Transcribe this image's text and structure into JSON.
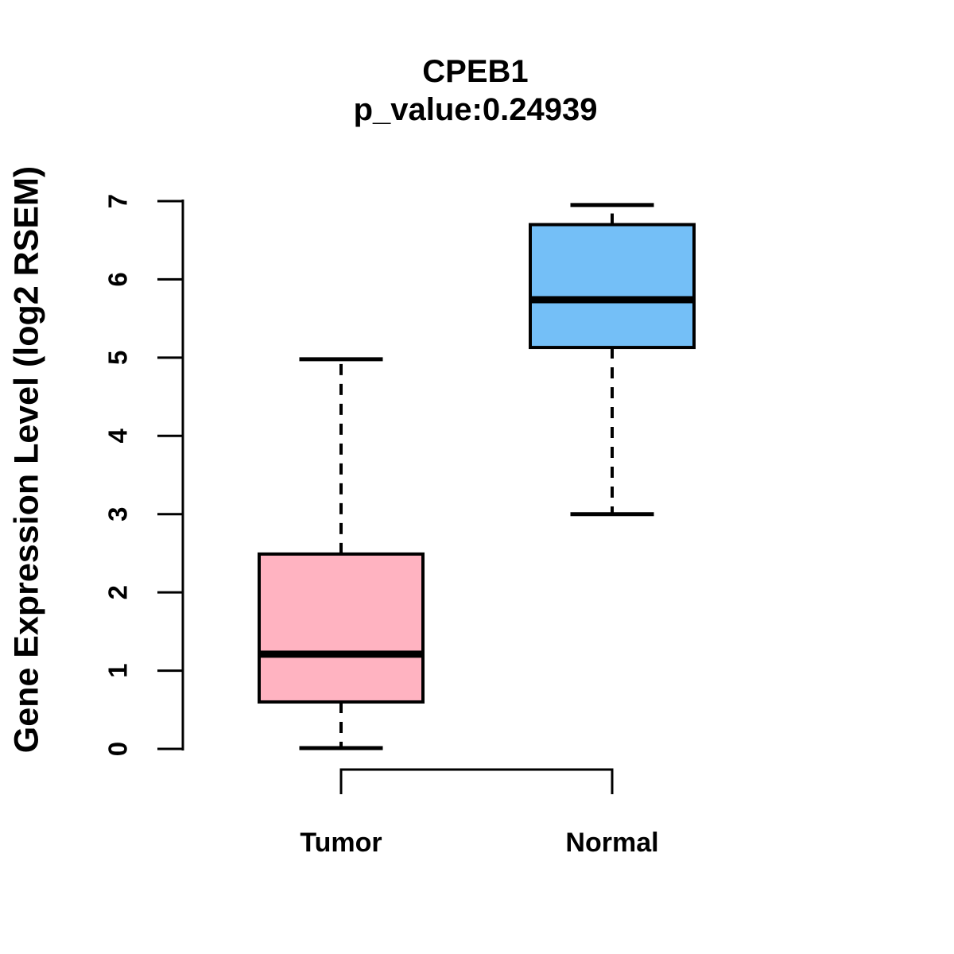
{
  "figure": {
    "title": "CPEB1",
    "subtitle": "p_value:0.24939",
    "ylabel": "Gene Expression Level (log2 RSEM)"
  },
  "chart_data": {
    "type": "boxplot",
    "title": "CPEB1",
    "subtitle": "p_value:0.24939",
    "xlabel": "",
    "ylabel": "Gene Expression Level (log2 RSEM)",
    "ylim": [
      0,
      7
    ],
    "yticks": [
      0,
      1,
      2,
      3,
      4,
      5,
      6,
      7
    ],
    "grid": false,
    "legend": "none",
    "categories": [
      "Tumor",
      "Normal"
    ],
    "series": [
      {
        "name": "Tumor",
        "lower_whisker": 0.01,
        "q1": 0.6,
        "median": 1.21,
        "q3": 2.49,
        "upper_whisker": 4.98,
        "fill": "#FFB3C1"
      },
      {
        "name": "Normal",
        "lower_whisker": 3.0,
        "q1": 5.13,
        "median": 5.74,
        "q3": 6.7,
        "upper_whisker": 6.95,
        "fill": "#74BFF7"
      }
    ],
    "colors": {
      "tumor_fill": "#FFB3C1",
      "normal_fill": "#74BFF7",
      "stroke": "#000000",
      "background": "#ffffff"
    }
  }
}
